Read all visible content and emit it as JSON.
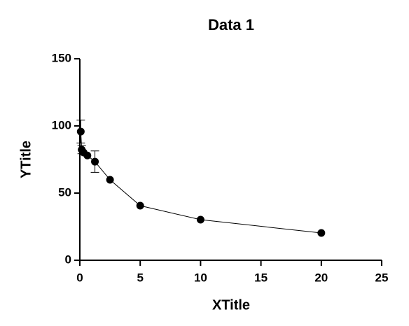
{
  "chart_data": {
    "type": "scatter",
    "title": "Data 1",
    "x_label": "XTitle",
    "y_label": "YTitle",
    "x": [
      0.078,
      0.156,
      0.3125,
      0.625,
      1.25,
      2.5,
      5,
      10,
      20
    ],
    "series": [
      {
        "color": "#000000",
        "values": [
          95.8,
          82.3,
          80.2,
          78,
          73.4,
          59.9,
          40.6,
          30.2,
          20.3
        ],
        "errors": [
          8.5,
          3,
          null,
          null,
          8,
          null,
          null,
          null,
          null
        ]
      }
    ],
    "xlim": [
      0,
      25
    ],
    "xticks": [
      0,
      5,
      10,
      15,
      20,
      25
    ],
    "ylim": [
      0,
      150
    ],
    "yticks": [
      0,
      50,
      100,
      150
    ],
    "grid": false
  }
}
